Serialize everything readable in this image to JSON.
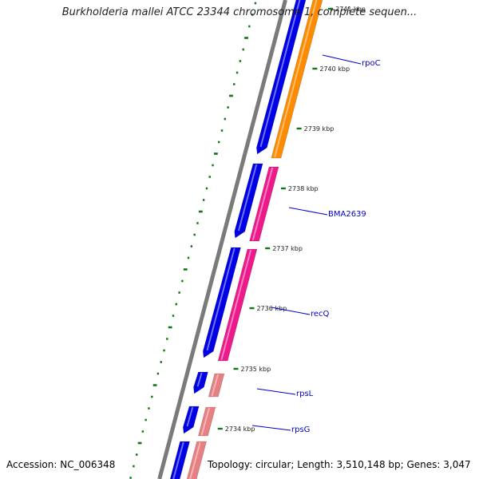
{
  "title": "Burkholderia mallei ATCC 23344 chromosome 1, complete sequen...",
  "accession": "Accession: NC_006348",
  "summary": "Topology: circular; Length: 3,510,148 bp; Genes: 3,047",
  "colors": {
    "backbone": "#7a7a7a",
    "forward_cds": "#0000e6",
    "orange_cds": "#ff8c00",
    "magenta_cds": "#ee1a8c",
    "pink_cds": "#e87f80",
    "gc_dots": "#117711",
    "tick": "#117711",
    "label": "#0000cc"
  },
  "ticks": [
    {
      "label": "2741 kbp"
    },
    {
      "label": "2740 kbp"
    },
    {
      "label": "2739 kbp"
    },
    {
      "label": "2738 kbp"
    },
    {
      "label": "2737 kbp"
    },
    {
      "label": "2736 kbp"
    },
    {
      "label": "2735 kbp"
    },
    {
      "label": "2734 kbp"
    }
  ],
  "genes": [
    {
      "name": "rpoC"
    },
    {
      "name": "BMA2639"
    },
    {
      "name": "recQ"
    },
    {
      "name": "rpsL"
    },
    {
      "name": "rpsG"
    }
  ]
}
